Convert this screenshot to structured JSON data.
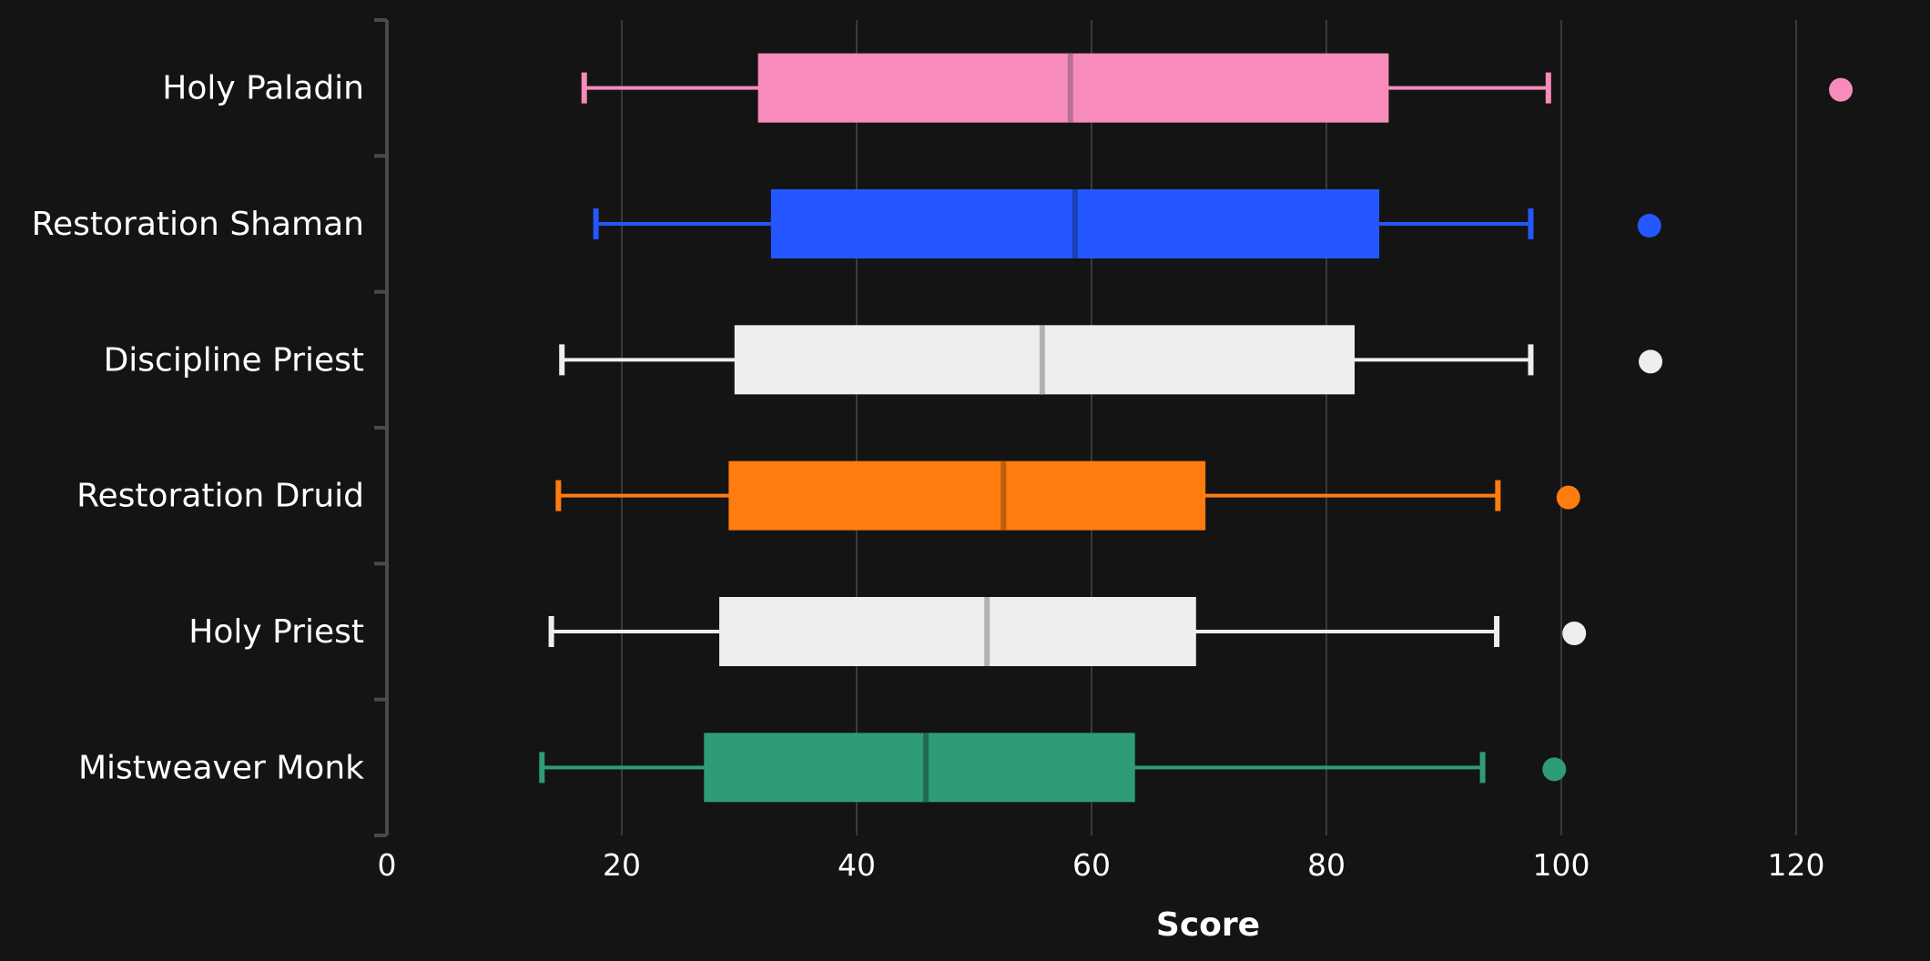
{
  "chart_data": {
    "type": "boxplot",
    "orientation": "horizontal",
    "xlabel": "Score",
    "xlim": [
      0,
      130
    ],
    "xticks": [
      0,
      20,
      40,
      60,
      80,
      100,
      120
    ],
    "grid": true,
    "categories": [
      "Holy Paladin",
      "Restoration Shaman",
      "Discipline Priest",
      "Restoration Druid",
      "Holy Priest",
      "Mistweaver Monk"
    ],
    "series": [
      {
        "category": "Holy Paladin",
        "whisker_low": 16.8,
        "q1": 31.6,
        "median": 58.2,
        "q3": 85.3,
        "whisker_high": 98.9,
        "outliers": [
          123.8
        ],
        "color": "#f78cbc",
        "median_color": "#b86f8f"
      },
      {
        "category": "Restoration Shaman",
        "whisker_low": 17.8,
        "q1": 32.7,
        "median": 58.6,
        "q3": 84.5,
        "whisker_high": 97.4,
        "outliers": [
          107.5
        ],
        "color": "#2457ff",
        "median_color": "#1c40b8"
      },
      {
        "category": "Discipline Priest",
        "whisker_low": 14.9,
        "q1": 29.6,
        "median": 55.8,
        "q3": 82.4,
        "whisker_high": 97.4,
        "outliers": [
          107.6
        ],
        "color": "#eeeeee",
        "median_color": "#b2b2b2"
      },
      {
        "category": "Restoration Druid",
        "whisker_low": 14.6,
        "q1": 29.1,
        "median": 52.5,
        "q3": 69.7,
        "whisker_high": 94.6,
        "outliers": [
          100.6
        ],
        "color": "#ff7c0f",
        "median_color": "#bd5e0d"
      },
      {
        "category": "Holy Priest",
        "whisker_low": 14.0,
        "q1": 28.3,
        "median": 51.1,
        "q3": 68.9,
        "whisker_high": 94.5,
        "outliers": [
          101.1
        ],
        "color": "#eeeeee",
        "median_color": "#b2b2b2"
      },
      {
        "category": "Mistweaver Monk",
        "whisker_low": 13.2,
        "q1": 27.0,
        "median": 45.9,
        "q3": 63.7,
        "whisker_high": 93.3,
        "outliers": [
          99.4
        ],
        "color": "#2e9c78",
        "median_color": "#1f6c52"
      }
    ],
    "colors": {
      "background": "#141414",
      "grid": "#3a3a3a",
      "axis": "#4a4a4a",
      "text": "#ffffff"
    }
  }
}
